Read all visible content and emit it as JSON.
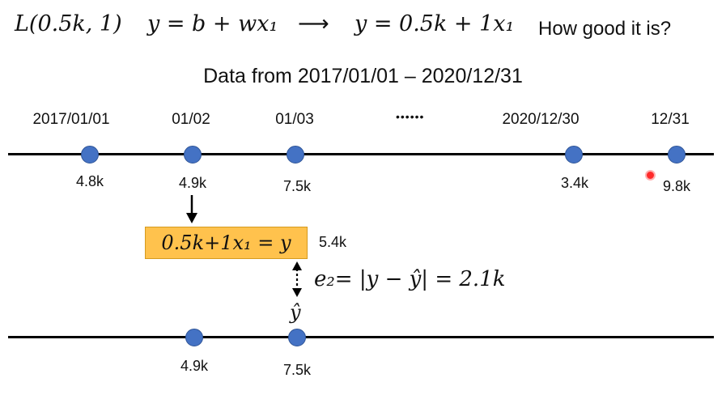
{
  "header": {
    "loss": "L(0.5k, 1)",
    "model_general": "y = b + wx₁",
    "arrow": "⟶",
    "model_specific": "y = 0.5k + 1x₁",
    "question": "How good it is?"
  },
  "subtitle": "Data from 2017/01/01 – 2020/12/31",
  "ellipsis": "••••••",
  "top_timeline": {
    "dates": [
      "2017/01/01",
      "01/02",
      "01/03",
      "2020/12/30",
      "12/31"
    ],
    "values": [
      "4.8k",
      "4.9k",
      "7.5k",
      "3.4k",
      "9.8k"
    ]
  },
  "prediction": {
    "formula": "0.5k+1x₁ = y",
    "predicted_value": "5.4k",
    "error": "e₂= |y − ŷ| = 2.1k",
    "yhat_label": "ŷ"
  },
  "bottom_timeline": {
    "values": [
      "4.9k",
      "7.5k"
    ]
  },
  "colors": {
    "dot": "#4472c4",
    "formula_box": "#ffc24d",
    "axis": "#000000"
  }
}
